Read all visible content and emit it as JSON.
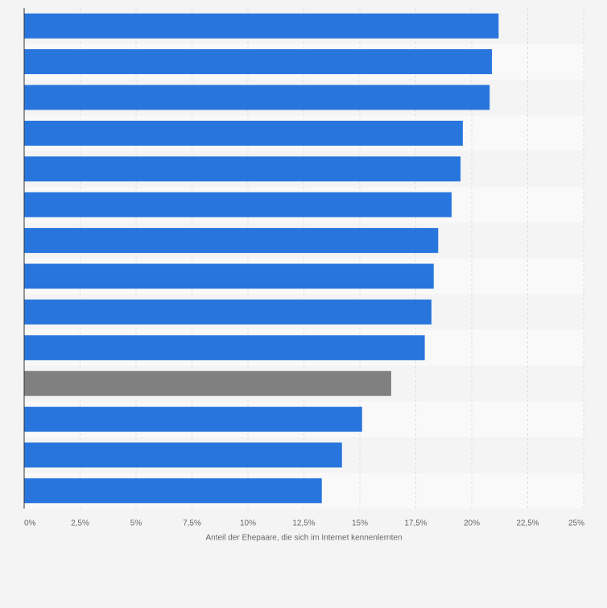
{
  "chart_data": {
    "type": "bar",
    "orientation": "horizontal",
    "xlabel": "Anteil der Ehepaare, die sich im Internet kennenlernten",
    "ylabel": "",
    "xlim": [
      0,
      25
    ],
    "ticks": [
      0,
      2.5,
      5,
      7.5,
      10,
      12.5,
      15,
      17.5,
      20,
      22.5,
      25
    ],
    "tick_labels": [
      "0%",
      "2,5%",
      "5%",
      "7,5%",
      "10%",
      "12,5%",
      "15%",
      "17,5%",
      "20%",
      "22,5%",
      "25%"
    ],
    "grid": true,
    "categories": [
      "",
      "",
      "",
      "",
      "",
      "",
      "",
      "",
      "",
      "",
      "",
      "",
      "",
      ""
    ],
    "values": [
      21.2,
      20.9,
      20.8,
      19.6,
      19.5,
      19.1,
      18.5,
      18.3,
      18.2,
      17.9,
      16.4,
      15.1,
      14.2,
      13.3
    ],
    "highlight_index": 10,
    "colors": {
      "bar": "#2876dd",
      "highlight": "#808080",
      "band_light": "#f9f9f9",
      "band_dark": "#f4f4f4",
      "grid": "#dddddd",
      "axis": "#333333",
      "text": "#666666"
    }
  }
}
